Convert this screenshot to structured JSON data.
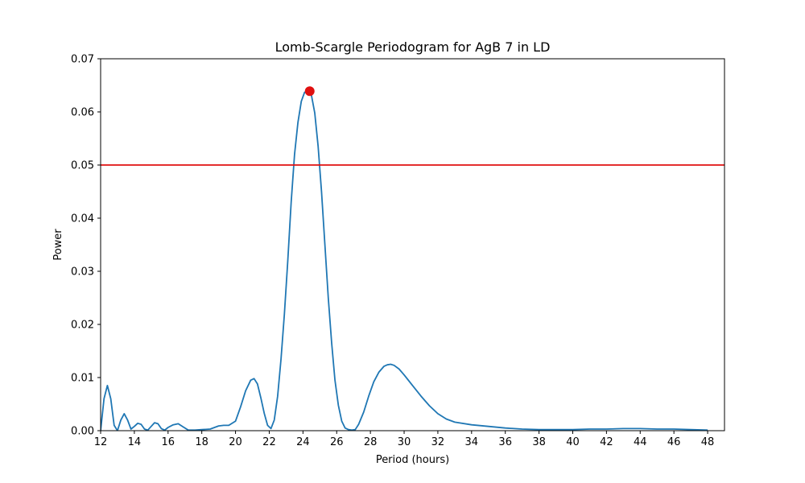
{
  "chart_data": {
    "type": "line",
    "title": "Lomb-Scargle Periodogram for AgB 7 in LD",
    "xlabel": "Period (hours)",
    "ylabel": "Power",
    "xlim": [
      12,
      49
    ],
    "ylim": [
      0,
      0.07
    ],
    "xticks": [
      "12",
      "14",
      "16",
      "18",
      "20",
      "22",
      "24",
      "26",
      "28",
      "30",
      "32",
      "34",
      "36",
      "38",
      "40",
      "42",
      "44",
      "46",
      "48"
    ],
    "yticks": [
      "0.00",
      "0.01",
      "0.02",
      "0.03",
      "0.04",
      "0.05",
      "0.06",
      "0.07"
    ],
    "grid": false,
    "series": [
      {
        "color": "#1f77b4",
        "x": [
          12.0,
          12.2,
          12.4,
          12.6,
          12.8,
          13.0,
          13.2,
          13.4,
          13.6,
          13.8,
          14.0,
          14.2,
          14.4,
          14.6,
          14.8,
          15.0,
          15.2,
          15.4,
          15.6,
          15.8,
          16.0,
          16.3,
          16.6,
          16.9,
          17.2,
          17.6,
          18.0,
          18.5,
          19.0,
          19.3,
          19.6,
          20.0,
          20.3,
          20.6,
          20.9,
          21.1,
          21.3,
          21.5,
          21.7,
          21.9,
          22.1,
          22.3,
          22.5,
          22.7,
          22.9,
          23.1,
          23.3,
          23.5,
          23.7,
          23.9,
          24.1,
          24.3,
          24.4,
          24.5,
          24.7,
          24.9,
          25.1,
          25.3,
          25.5,
          25.7,
          25.9,
          26.1,
          26.3,
          26.5,
          26.7,
          26.9,
          27.1,
          27.3,
          27.6,
          27.9,
          28.2,
          28.5,
          28.8,
          29.0,
          29.2,
          29.4,
          29.7,
          30.0,
          30.5,
          31.0,
          31.5,
          32.0,
          32.5,
          33.0,
          34.0,
          35.0,
          36.0,
          37.0,
          38.0,
          39.0,
          40.0,
          41.0,
          42.0,
          43.0,
          44.0,
          45.0,
          46.0,
          47.0,
          48.0
        ],
        "y": [
          0.0,
          0.006,
          0.0085,
          0.006,
          0.001,
          0.0,
          0.002,
          0.0032,
          0.002,
          0.0003,
          0.0008,
          0.0014,
          0.0012,
          0.0003,
          0.0001,
          0.0008,
          0.0015,
          0.0013,
          0.0004,
          0.0001,
          0.0006,
          0.0011,
          0.0013,
          0.0007,
          0.0001,
          0.0001,
          0.0002,
          0.0003,
          0.0009,
          0.001,
          0.001,
          0.0018,
          0.0045,
          0.0075,
          0.0095,
          0.0098,
          0.0088,
          0.0062,
          0.0033,
          0.001,
          0.0004,
          0.002,
          0.0065,
          0.0135,
          0.022,
          0.032,
          0.043,
          0.052,
          0.058,
          0.062,
          0.0637,
          0.0639,
          0.0638,
          0.0632,
          0.0598,
          0.0535,
          0.045,
          0.035,
          0.025,
          0.0165,
          0.0095,
          0.0048,
          0.0018,
          0.0005,
          0.0002,
          0.0001,
          0.0002,
          0.0012,
          0.0035,
          0.0065,
          0.0092,
          0.011,
          0.0121,
          0.0124,
          0.0125,
          0.0123,
          0.0116,
          0.0105,
          0.0085,
          0.0065,
          0.0047,
          0.0032,
          0.0022,
          0.0016,
          0.0011,
          0.0008,
          0.0005,
          0.0003,
          0.0002,
          0.0002,
          0.0002,
          0.0003,
          0.0003,
          0.0004,
          0.0004,
          0.0003,
          0.0003,
          0.0002,
          0.0001
        ]
      }
    ],
    "hline": {
      "y": 0.05,
      "color": "#e01010"
    },
    "peak": {
      "x": 24.4,
      "y": 0.0639,
      "color": "#e01010"
    }
  }
}
